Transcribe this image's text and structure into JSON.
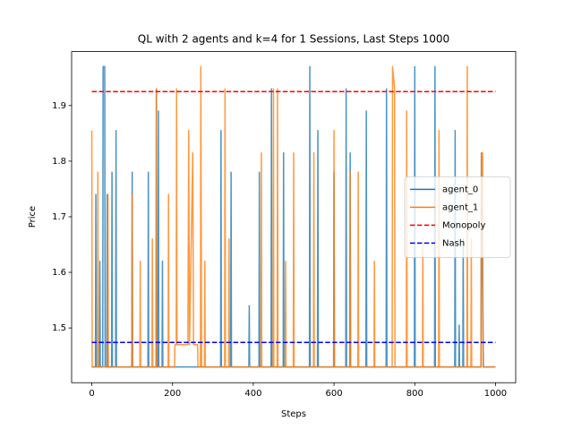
{
  "chart_data": {
    "type": "line",
    "title": "QL with 2 agents and k=4 for 1 Sessions, Last Steps 1000",
    "x_label": "Steps",
    "y_label": "Price",
    "xlim": [
      -50,
      1050
    ],
    "ylim": [
      1.4016,
      1.997
    ],
    "xticks": [
      0,
      200,
      400,
      600,
      800,
      1000
    ],
    "yticks": [
      1.5,
      1.6,
      1.7,
      1.8,
      1.9
    ],
    "legend": "center right",
    "series": [
      {
        "name": "agent_0",
        "color": "#1f77b4",
        "x": [
          0,
          9,
          10,
          11,
          19,
          20,
          21,
          27,
          28,
          32,
          33,
          37,
          38,
          39,
          49,
          50,
          51,
          59,
          60,
          61,
          99,
          100,
          101,
          139,
          140,
          141,
          159,
          160,
          161,
          164,
          165,
          166,
          174,
          175,
          176,
          319,
          320,
          321,
          344,
          345,
          346,
          389,
          390,
          391,
          414,
          415,
          416,
          444,
          445,
          446,
          474,
          475,
          476,
          539,
          540,
          541,
          559,
          560,
          561,
          599,
          600,
          601,
          629,
          630,
          631,
          639,
          640,
          641,
          679,
          680,
          681,
          729,
          730,
          731,
          799,
          800,
          801,
          849,
          850,
          851,
          899,
          900,
          901,
          909,
          910,
          911,
          919,
          920,
          921,
          964,
          965,
          970,
          1000
        ],
        "values": [
          1.43,
          1.43,
          1.74,
          1.43,
          1.43,
          1.62,
          1.43,
          1.43,
          1.97,
          1.97,
          1.43,
          1.43,
          1.74,
          1.43,
          1.43,
          1.78,
          1.43,
          1.43,
          1.855,
          1.43,
          1.43,
          1.78,
          1.43,
          1.43,
          1.78,
          1.43,
          1.43,
          1.93,
          1.43,
          1.43,
          1.89,
          1.43,
          1.43,
          1.62,
          1.43,
          1.43,
          1.855,
          1.43,
          1.43,
          1.78,
          1.43,
          1.43,
          1.54,
          1.43,
          1.43,
          1.78,
          1.43,
          1.43,
          1.93,
          1.43,
          1.43,
          1.815,
          1.43,
          1.43,
          1.97,
          1.43,
          1.43,
          1.855,
          1.43,
          1.43,
          1.78,
          1.43,
          1.43,
          1.93,
          1.43,
          1.43,
          1.815,
          1.43,
          1.43,
          1.89,
          1.43,
          1.43,
          1.93,
          1.43,
          1.43,
          1.97,
          1.43,
          1.43,
          1.97,
          1.43,
          1.43,
          1.855,
          1.43,
          1.43,
          1.505,
          1.43,
          1.43,
          1.66,
          1.43,
          1.43,
          1.815,
          1.43,
          1.43
        ]
      },
      {
        "name": "agent_1",
        "color": "#ff7f0e",
        "x": [
          0,
          1,
          14,
          15,
          16,
          39,
          40,
          41,
          99,
          100,
          101,
          119,
          120,
          121,
          149,
          150,
          151,
          159,
          160,
          161,
          189,
          190,
          191,
          205,
          206,
          209,
          210,
          211,
          238,
          240,
          242,
          250,
          252,
          262,
          263,
          269,
          270,
          272,
          279,
          280,
          281,
          329,
          330,
          331,
          339,
          340,
          341,
          419,
          420,
          421,
          449,
          450,
          451,
          459,
          460,
          461,
          479,
          480,
          481,
          499,
          500,
          501,
          549,
          550,
          551,
          599,
          600,
          601,
          639,
          640,
          641,
          659,
          660,
          661,
          699,
          700,
          701,
          744,
          745,
          750,
          751,
          779,
          780,
          781,
          819,
          820,
          821,
          859,
          860,
          861,
          929,
          930,
          931,
          939,
          940,
          941,
          964,
          965,
          968,
          969,
          1000
        ],
        "values": [
          1.855,
          1.43,
          1.43,
          1.78,
          1.43,
          1.43,
          1.74,
          1.43,
          1.43,
          1.74,
          1.43,
          1.43,
          1.62,
          1.43,
          1.43,
          1.66,
          1.43,
          1.43,
          1.93,
          1.43,
          1.43,
          1.74,
          1.43,
          1.43,
          1.47,
          1.47,
          1.93,
          1.47,
          1.47,
          1.855,
          1.47,
          1.815,
          1.47,
          1.47,
          1.43,
          1.43,
          1.97,
          1.43,
          1.43,
          1.62,
          1.43,
          1.43,
          1.93,
          1.43,
          1.43,
          1.66,
          1.43,
          1.43,
          1.815,
          1.43,
          1.43,
          1.93,
          1.43,
          1.43,
          1.93,
          1.43,
          1.43,
          1.62,
          1.43,
          1.43,
          1.815,
          1.43,
          1.43,
          1.815,
          1.43,
          1.43,
          1.855,
          1.43,
          1.43,
          1.78,
          1.43,
          1.43,
          1.78,
          1.43,
          1.43,
          1.62,
          1.43,
          1.43,
          1.97,
          1.93,
          1.43,
          1.43,
          1.89,
          1.43,
          1.43,
          1.66,
          1.43,
          1.43,
          1.855,
          1.43,
          1.43,
          1.97,
          1.43,
          1.43,
          1.66,
          1.43,
          1.43,
          1.815,
          1.815,
          1.43,
          1.43
        ]
      }
    ],
    "hlines": [
      {
        "name": "Monopoly",
        "color": "#ff0000",
        "value": 1.925
      },
      {
        "name": "Nash",
        "color": "#0000ff",
        "value": 1.474
      }
    ]
  }
}
